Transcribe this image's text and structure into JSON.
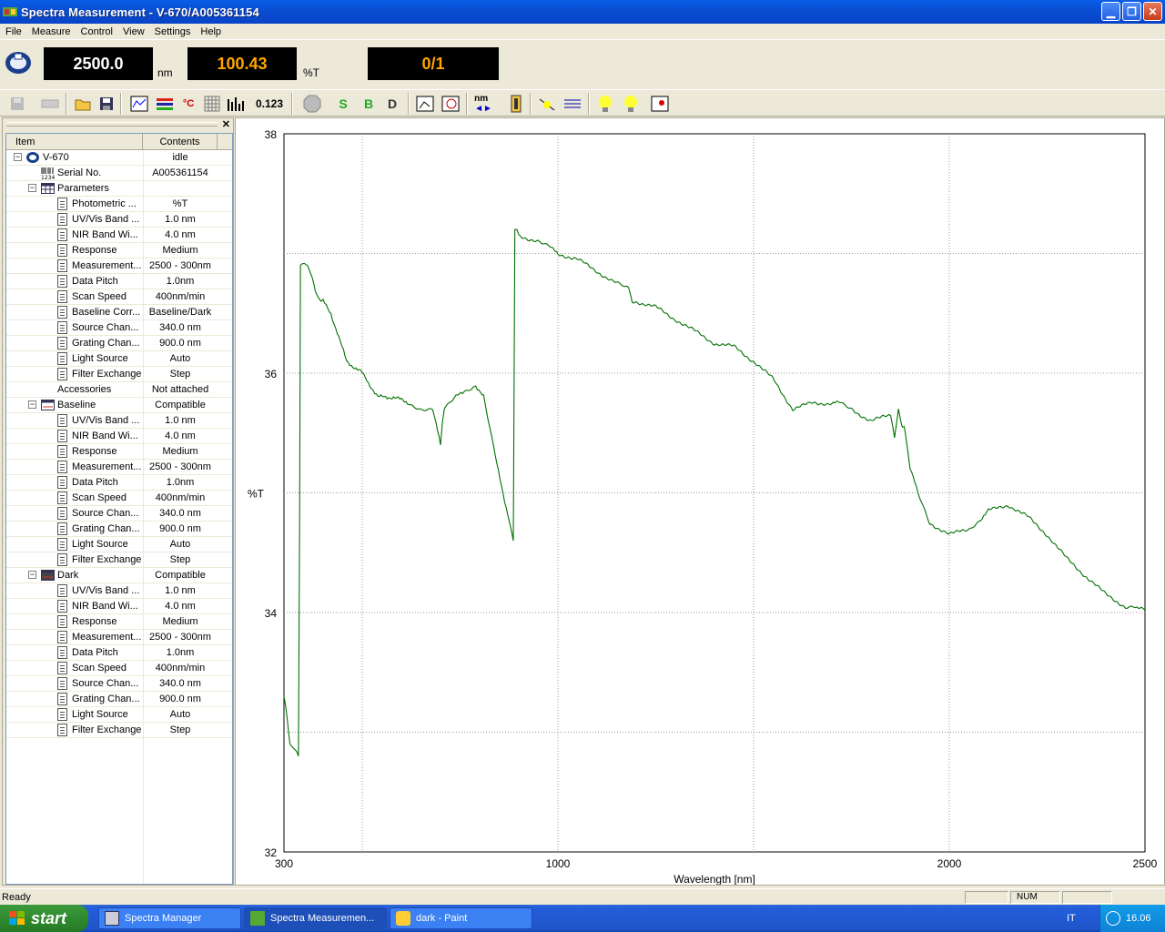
{
  "window": {
    "title": "Spectra Measurement - V-670/A005361154"
  },
  "menu": [
    "File",
    "Measure",
    "Control",
    "View",
    "Settings",
    "Help"
  ],
  "readout": {
    "wavelength": "2500.0",
    "wavelength_unit": "nm",
    "value": "100.43",
    "value_unit": "%T",
    "count": "0/1",
    "colors": {
      "wavelength": "#ffffff",
      "value": "#ffa500",
      "count": "#ffa500"
    }
  },
  "toolbar": {
    "buttons": [
      "save-disabled-icon",
      "print-disabled-icon",
      "open-icon",
      "save-icon",
      "spectrum-view-icon",
      "parameters-icon",
      "temperature-icon",
      "grid-icon",
      "bars-icon",
      "numeric-icon",
      "stop-icon",
      "sample-measure-icon",
      "baseline-measure-icon",
      "dark-measure-icon",
      "hand-scale-icon",
      "auto-scale-icon",
      "wavelength-move-icon",
      "cell-icon",
      "light-source-icon",
      "spectrum-lines-icon",
      "d2-lamp-icon",
      "wi-lamp-icon",
      "record-icon"
    ],
    "numeric_label": "0.123"
  },
  "tree": {
    "headers": {
      "item": "Item",
      "contents": "Contents"
    },
    "rows": [
      {
        "label": "V-670",
        "value": "idle",
        "level": 0,
        "expander": "⊟",
        "icon": "instrument"
      },
      {
        "label": "Serial No.",
        "value": "A005361154",
        "level": 1,
        "icon": "serial"
      },
      {
        "label": "Parameters",
        "value": "",
        "level": 1,
        "expander": "⊟",
        "icon": "table"
      },
      {
        "label": "Photometric ...",
        "value": "%T",
        "level": 2,
        "icon": "doc"
      },
      {
        "label": "UV/Vis Band ...",
        "value": "1.0 nm",
        "level": 2,
        "icon": "doc"
      },
      {
        "label": "NIR Band Wi...",
        "value": "4.0 nm",
        "level": 2,
        "icon": "doc"
      },
      {
        "label": "Response",
        "value": "Medium",
        "level": 2,
        "icon": "doc"
      },
      {
        "label": "Measurement...",
        "value": "2500 - 300nm",
        "level": 2,
        "icon": "doc"
      },
      {
        "label": "Data Pitch",
        "value": "1.0nm",
        "level": 2,
        "icon": "doc"
      },
      {
        "label": "Scan Speed",
        "value": "400nm/min",
        "level": 2,
        "icon": "doc"
      },
      {
        "label": "Baseline Corr...",
        "value": "Baseline/Dark",
        "level": 2,
        "icon": "doc"
      },
      {
        "label": "Source Chan...",
        "value": "340.0 nm",
        "level": 2,
        "icon": "doc"
      },
      {
        "label": "Grating Chan...",
        "value": "900.0 nm",
        "level": 2,
        "icon": "doc"
      },
      {
        "label": "Light Source",
        "value": "Auto",
        "level": 2,
        "icon": "doc"
      },
      {
        "label": "Filter Exchange",
        "value": "Step",
        "level": 2,
        "icon": "doc"
      },
      {
        "label": "Accessories",
        "value": "Not attached",
        "level": 2,
        "icon": "none"
      },
      {
        "label": "Baseline",
        "value": "Compatible",
        "level": 1,
        "expander": "⊟",
        "icon": "baseline"
      },
      {
        "label": "UV/Vis Band ...",
        "value": "1.0 nm",
        "level": 2,
        "icon": "doc"
      },
      {
        "label": "NIR Band Wi...",
        "value": "4.0 nm",
        "level": 2,
        "icon": "doc"
      },
      {
        "label": "Response",
        "value": "Medium",
        "level": 2,
        "icon": "doc"
      },
      {
        "label": "Measurement...",
        "value": "2500 - 300nm",
        "level": 2,
        "icon": "doc"
      },
      {
        "label": "Data Pitch",
        "value": "1.0nm",
        "level": 2,
        "icon": "doc"
      },
      {
        "label": "Scan Speed",
        "value": "400nm/min",
        "level": 2,
        "icon": "doc"
      },
      {
        "label": "Source Chan...",
        "value": "340.0 nm",
        "level": 2,
        "icon": "doc"
      },
      {
        "label": "Grating Chan...",
        "value": "900.0 nm",
        "level": 2,
        "icon": "doc"
      },
      {
        "label": "Light Source",
        "value": "Auto",
        "level": 2,
        "icon": "doc"
      },
      {
        "label": "Filter Exchange",
        "value": "Step",
        "level": 2,
        "icon": "doc"
      },
      {
        "label": "Dark",
        "value": "Compatible",
        "level": 1,
        "expander": "⊟",
        "icon": "dark"
      },
      {
        "label": "UV/Vis Band ...",
        "value": "1.0 nm",
        "level": 2,
        "icon": "doc"
      },
      {
        "label": "NIR Band Wi...",
        "value": "4.0 nm",
        "level": 2,
        "icon": "doc"
      },
      {
        "label": "Response",
        "value": "Medium",
        "level": 2,
        "icon": "doc"
      },
      {
        "label": "Measurement...",
        "value": "2500 - 300nm",
        "level": 2,
        "icon": "doc"
      },
      {
        "label": "Data Pitch",
        "value": "1.0nm",
        "level": 2,
        "icon": "doc"
      },
      {
        "label": "Scan Speed",
        "value": "400nm/min",
        "level": 2,
        "icon": "doc"
      },
      {
        "label": "Source Chan...",
        "value": "340.0 nm",
        "level": 2,
        "icon": "doc"
      },
      {
        "label": "Grating Chan...",
        "value": "900.0 nm",
        "level": 2,
        "icon": "doc"
      },
      {
        "label": "Light Source",
        "value": "Auto",
        "level": 2,
        "icon": "doc"
      },
      {
        "label": "Filter Exchange",
        "value": "Step",
        "level": 2,
        "icon": "doc"
      }
    ]
  },
  "chart_data": {
    "type": "line",
    "xlabel": "Wavelength [nm]",
    "ylabel": "%T",
    "xlim": [
      300,
      2500
    ],
    "ylim": [
      32,
      38
    ],
    "xticks": [
      300,
      1000,
      2000,
      2500
    ],
    "yticks": [
      32,
      34,
      36,
      38
    ],
    "grid": true,
    "line_color": "#007000",
    "series": [
      {
        "x": [
          300,
          305,
          315,
          337,
          340,
          342,
          345,
          360,
          372,
          380,
          395,
          400,
          420,
          440,
          460,
          500,
          540,
          580,
          620,
          650,
          680,
          700,
          705,
          710,
          740,
          760,
          790,
          810,
          840,
          860,
          880,
          886,
          890,
          895,
          900,
          950,
          980,
          1000,
          1050,
          1100,
          1150,
          1180,
          1190,
          1200,
          1250,
          1300,
          1350,
          1400,
          1450,
          1500,
          1550,
          1600,
          1650,
          1700,
          1720,
          1750,
          1800,
          1850,
          1860,
          1870,
          1880,
          1885,
          1900,
          1920,
          1950,
          2000,
          2050,
          2080,
          2100,
          2150,
          2200,
          2250,
          2300,
          2350,
          2400,
          2450,
          2480,
          2490,
          2500
        ],
        "y": [
          33.3,
          33.2,
          32.9,
          32.8,
          34.8,
          36.9,
          36.9,
          36.9,
          36.8,
          36.7,
          36.6,
          36.6,
          36.5,
          36.3,
          36.1,
          36.0,
          35.8,
          35.8,
          35.75,
          35.7,
          35.7,
          35.4,
          35.6,
          35.7,
          35.8,
          35.85,
          35.9,
          35.8,
          35.3,
          35.0,
          34.7,
          34.6,
          37.2,
          37.2,
          37.15,
          37.1,
          37.05,
          37.0,
          36.95,
          36.85,
          36.75,
          36.7,
          36.6,
          36.6,
          36.55,
          36.45,
          36.35,
          36.25,
          36.22,
          36.1,
          35.95,
          35.7,
          35.75,
          35.75,
          35.75,
          35.7,
          35.6,
          35.65,
          35.45,
          35.7,
          35.55,
          35.55,
          35.2,
          35.0,
          34.75,
          34.65,
          34.7,
          34.78,
          34.85,
          34.9,
          34.8,
          34.65,
          34.45,
          34.3,
          34.15,
          34.05,
          34.05,
          34.05,
          34.02
        ]
      }
    ]
  },
  "status": {
    "text": "Ready",
    "num": "NUM"
  },
  "taskbar": {
    "start": "start",
    "tasks": [
      "Spectra Manager",
      "Spectra Measuremen...",
      "dark - Paint"
    ],
    "lang": "IT",
    "clock": "16.06"
  }
}
